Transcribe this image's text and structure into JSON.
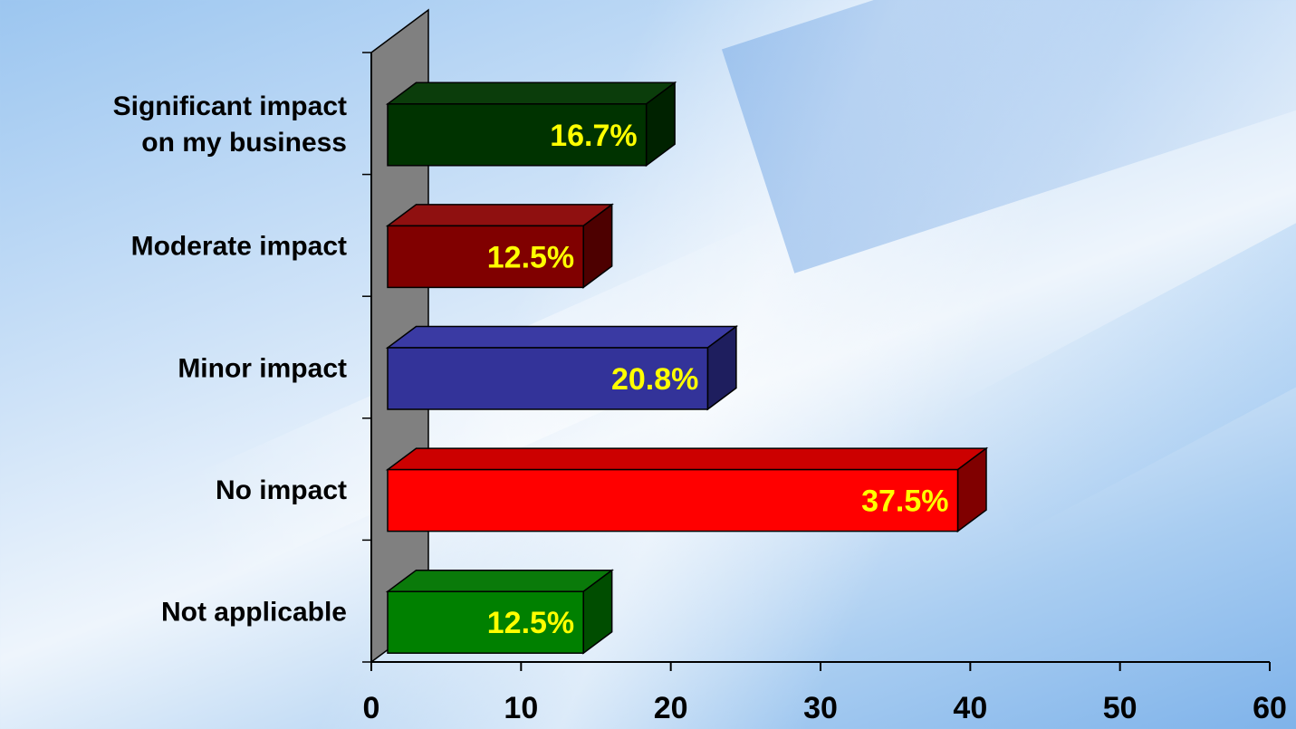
{
  "chart_data": {
    "type": "bar",
    "orientation": "horizontal",
    "style": "3d",
    "categories": [
      [
        "Significant impact",
        "on my business"
      ],
      [
        "Moderate impact"
      ],
      [
        "Minor impact"
      ],
      [
        "No impact"
      ],
      [
        "Not applicable"
      ]
    ],
    "values": [
      16.7,
      12.5,
      20.8,
      37.5,
      12.5
    ],
    "data_labels": [
      "16.7%",
      "12.5%",
      "20.8%",
      "37.5%",
      "12.5%"
    ],
    "bar_colors": [
      {
        "front": "#003300",
        "top": "#0b3d0b",
        "side": "#002200"
      },
      {
        "front": "#800000",
        "top": "#8f1010",
        "side": "#4d0000"
      },
      {
        "front": "#333399",
        "top": "#3a3aa3",
        "side": "#1e1e5e"
      },
      {
        "front": "#ff0000",
        "top": "#cc0000",
        "side": "#800000"
      },
      {
        "front": "#008000",
        "top": "#0a7a0a",
        "side": "#004d00"
      }
    ],
    "xlim": [
      0,
      60
    ],
    "xticks": [
      0,
      10,
      20,
      30,
      40,
      50,
      60
    ],
    "title": "",
    "xlabel": "",
    "ylabel": "",
    "grid": false,
    "legend": "none",
    "wall_color": "#808080",
    "data_label_color": "#ffff00"
  }
}
